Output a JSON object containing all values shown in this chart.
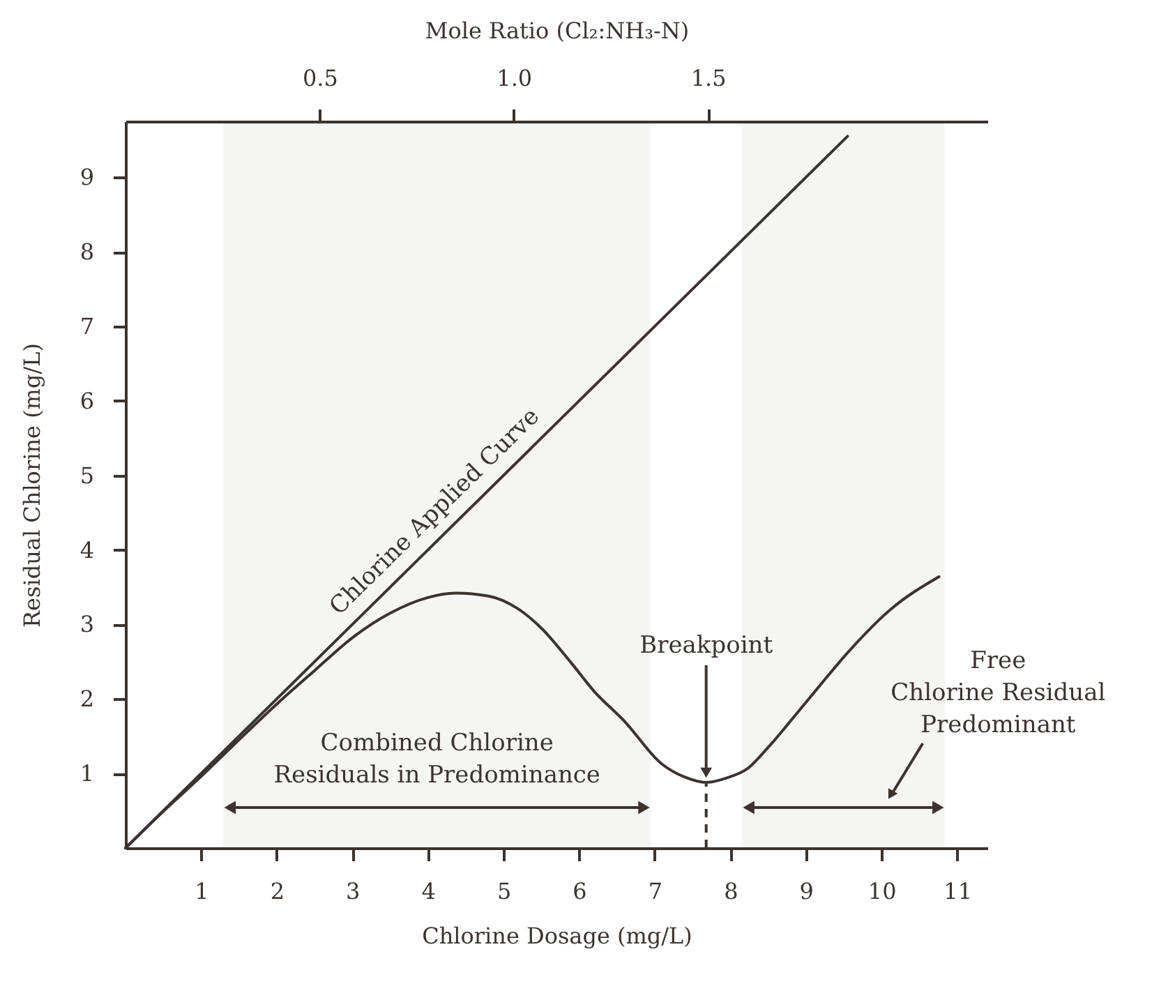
{
  "chart_data": {
    "type": "line",
    "xlabel": "Chlorine Dosage (mg/L)",
    "ylabel": "Residual Chlorine (mg/L)",
    "x2label": "Mole Ratio (Cl₂:NH₃-N)",
    "xlim": [
      0,
      11.4
    ],
    "ylim": [
      0,
      9.75
    ],
    "xticks": [
      1,
      2,
      3,
      4,
      5,
      6,
      7,
      8,
      9,
      10,
      11
    ],
    "yticks": [
      1,
      2,
      3,
      4,
      5,
      6,
      7,
      8,
      9
    ],
    "x2lim": [
      0,
      2.22
    ],
    "x2ticks": [
      0.5,
      {
        "value": 1,
        "label": "1.0"
      },
      1.5
    ],
    "grid": false,
    "legend": false,
    "line_style": "solid",
    "series": [
      {
        "name": "Chlorine Applied Curve",
        "color": "#3b3330",
        "x": [
          0,
          9.55
        ],
        "values": [
          0,
          9.55
        ]
      },
      {
        "color": "#3b3330",
        "x": [
          0,
          0.5,
          1,
          1.5,
          2,
          2.5,
          3,
          3.5,
          4,
          4.36,
          4.8,
          5.19,
          5.5,
          5.89,
          6.2,
          6.6,
          7.09,
          7.4,
          7.68,
          7.95,
          8.22,
          8.5,
          8.85,
          9.2,
          9.56,
          10.13,
          10.76
        ],
        "values": [
          0,
          0.49,
          0.96,
          1.45,
          1.93,
          2.38,
          2.82,
          3.15,
          3.36,
          3.42,
          3.38,
          3.21,
          2.95,
          2.49,
          2.1,
          1.7,
          1.13,
          0.95,
          0.88,
          0.94,
          1.06,
          1.35,
          1.77,
          2.2,
          2.63,
          3.21,
          3.64
        ]
      }
    ],
    "annotations": [
      {
        "text": "Breakpoint",
        "x": 7.68,
        "y": 0.88
      }
    ],
    "ref_lines": [
      {
        "axis": "x",
        "value": 7.68,
        "line_style": "dashed",
        "color": "#3b3330"
      }
    ],
    "bands": [
      {
        "axis": "x",
        "from": 1.29,
        "to": 6.95,
        "label": "Combined Chlorine\nResiduals in Predominance",
        "color": "#3b3330"
      },
      {
        "axis": "x",
        "from": 8.15,
        "to": 10.84,
        "label": "Free\nChlorine Residual\nPredominant",
        "color": "#3b3330"
      }
    ]
  }
}
